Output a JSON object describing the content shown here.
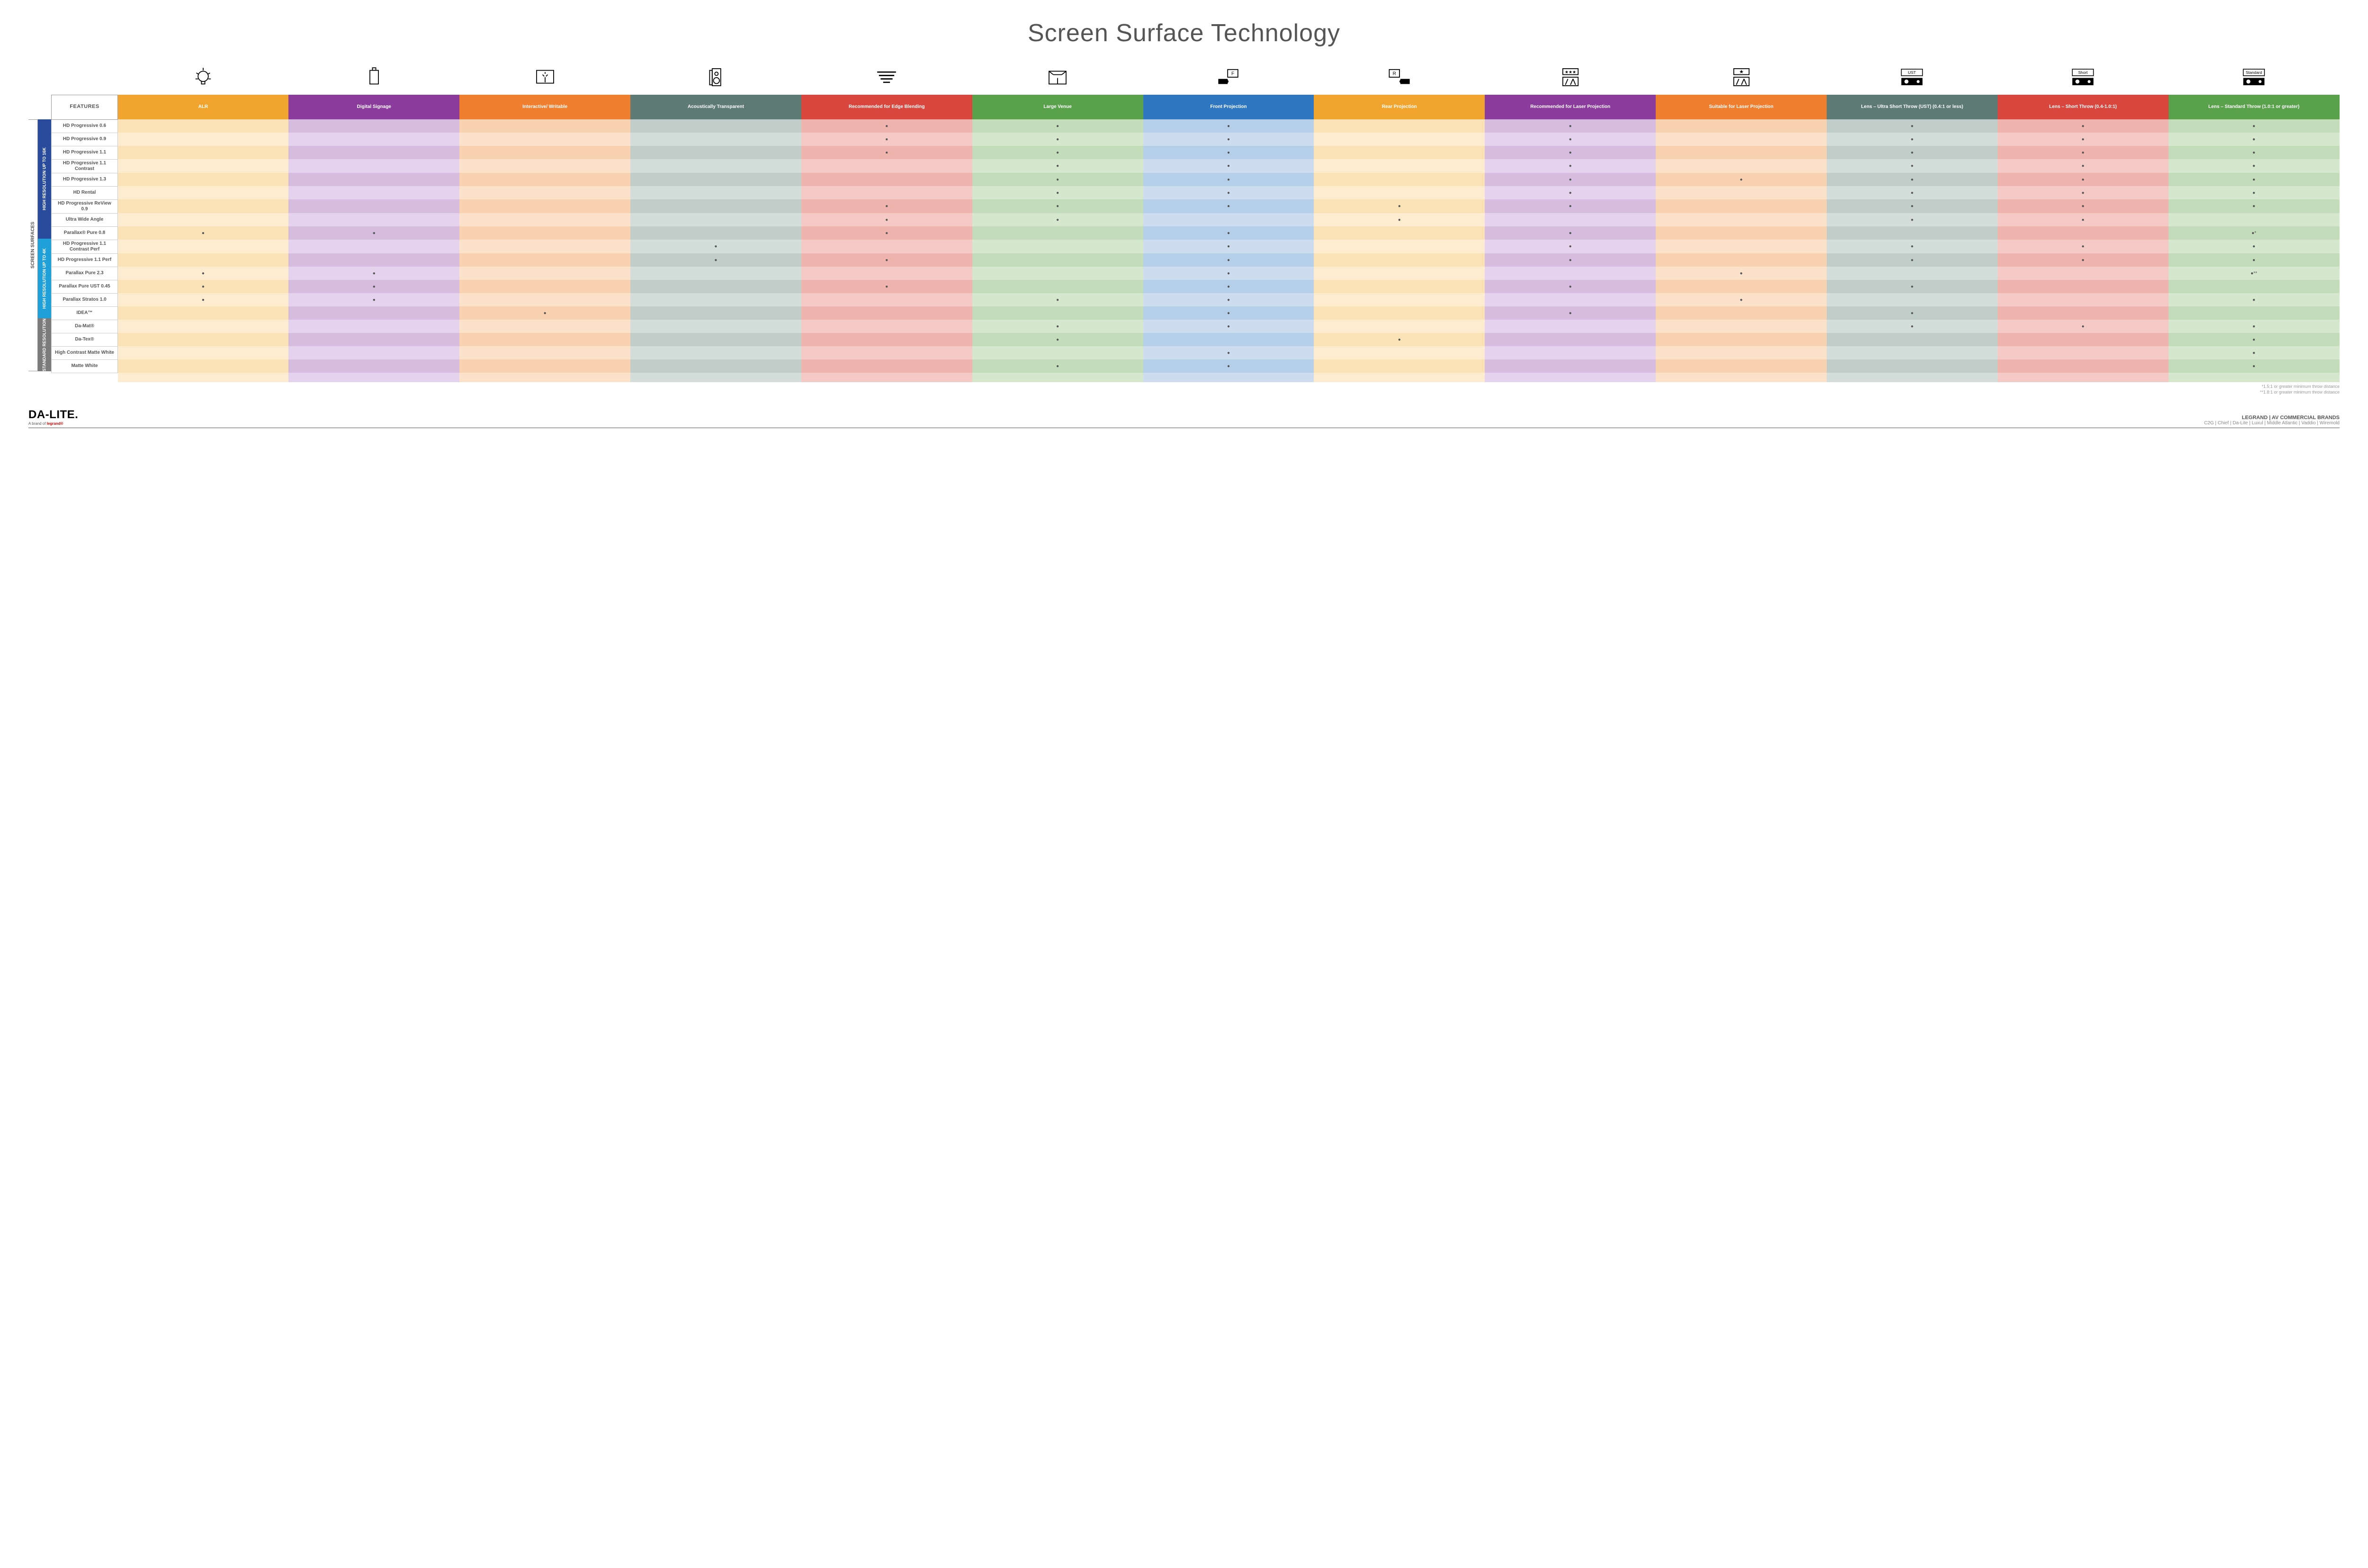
{
  "title": "Screen Surface Technology",
  "outer_label": "SCREEN SURFACES",
  "groups": [
    {
      "label": "HIGH RESOLUTION UP TO 16K",
      "color": "#2a4b9b",
      "span": 9
    },
    {
      "label": "HIGH RESOLUTION UP TO 4K",
      "color": "#1fa0d8",
      "span": 6
    },
    {
      "label": "STANDARD RESOLUTION",
      "color": "#7b7b7b",
      "span": 4
    }
  ],
  "features_header": "FEATURES",
  "columns": [
    {
      "label": "ALR",
      "color": "#f2a52e",
      "light": "#fbe2b6",
      "lighter": "#fdeccf",
      "icon": "bulb"
    },
    {
      "label": "Digital Signage",
      "color": "#8a3b9c",
      "light": "#d6bde0",
      "lighter": "#e5d2ec",
      "icon": "signage"
    },
    {
      "label": "Interactive/ Writable",
      "color": "#f07e2f",
      "light": "#f9d2b2",
      "lighter": "#fce2cb",
      "icon": "touch"
    },
    {
      "label": "Acoustically Transparent",
      "color": "#5d7a74",
      "light": "#c0cdc9",
      "lighter": "#d3ddda",
      "icon": "speaker"
    },
    {
      "label": "Recommended for Edge Blending",
      "color": "#d9463d",
      "light": "#f0b4af",
      "lighter": "#f5cac6",
      "icon": "blend"
    },
    {
      "label": "Large Venue",
      "color": "#5aa14c",
      "light": "#c3dcb9",
      "lighter": "#d5e7cd",
      "icon": "venue"
    },
    {
      "label": "Front Projection",
      "color": "#2f77c0",
      "light": "#b6cfe8",
      "lighter": "#cdddef",
      "icon": "front"
    },
    {
      "label": "Rear Projection",
      "color": "#f2a52e",
      "light": "#fbe2b6",
      "lighter": "#fdeccf",
      "icon": "rear"
    },
    {
      "label": "Recommended for Laser Projection",
      "color": "#8a3b9c",
      "light": "#d6bde0",
      "lighter": "#e5d2ec",
      "icon": "laser-rec"
    },
    {
      "label": "Suitable for Laser Projection",
      "color": "#f07e2f",
      "light": "#f9d2b2",
      "lighter": "#fce2cb",
      "icon": "laser-suit"
    },
    {
      "label": "Lens – Ultra Short Throw (UST) (0.4:1 or less)",
      "color": "#5d7a74",
      "light": "#c0cdc9",
      "lighter": "#d3ddda",
      "icon": "ust"
    },
    {
      "label": "Lens – Short Throw (0.4-1.0:1)",
      "color": "#d9463d",
      "light": "#f0b4af",
      "lighter": "#f5cac6",
      "icon": "short"
    },
    {
      "label": "Lens – Standard Throw (1.0:1 or greater)",
      "color": "#5aa14c",
      "light": "#c3dcb9",
      "lighter": "#d5e7cd",
      "icon": "standard"
    }
  ],
  "rows": [
    {
      "label": "HD Progressive 0.6",
      "dots": [
        0,
        0,
        0,
        0,
        1,
        1,
        1,
        0,
        1,
        0,
        1,
        1,
        1
      ]
    },
    {
      "label": "HD Progressive 0.9",
      "dots": [
        0,
        0,
        0,
        0,
        1,
        1,
        1,
        0,
        1,
        0,
        1,
        1,
        1
      ]
    },
    {
      "label": "HD Progressive 1.1",
      "dots": [
        0,
        0,
        0,
        0,
        1,
        1,
        1,
        0,
        1,
        0,
        1,
        1,
        1
      ]
    },
    {
      "label": "HD Progressive 1.1 Contrast",
      "dots": [
        0,
        0,
        0,
        0,
        0,
        1,
        1,
        0,
        1,
        0,
        1,
        1,
        1
      ]
    },
    {
      "label": "HD Progressive 1.3",
      "dots": [
        0,
        0,
        0,
        0,
        0,
        1,
        1,
        0,
        1,
        1,
        1,
        1,
        1
      ]
    },
    {
      "label": "HD Rental",
      "dots": [
        0,
        0,
        0,
        0,
        0,
        1,
        1,
        0,
        1,
        0,
        1,
        1,
        1
      ]
    },
    {
      "label": "HD Progressive ReView 0.9",
      "dots": [
        0,
        0,
        0,
        0,
        1,
        1,
        1,
        1,
        1,
        0,
        1,
        1,
        1
      ]
    },
    {
      "label": "Ultra Wide Angle",
      "dots": [
        0,
        0,
        0,
        0,
        1,
        1,
        0,
        1,
        0,
        0,
        1,
        1,
        0
      ]
    },
    {
      "label": "Parallax® Pure 0.8",
      "dots": [
        1,
        1,
        0,
        0,
        1,
        0,
        1,
        0,
        1,
        0,
        0,
        0,
        "●*"
      ]
    },
    {
      "label": "HD Progressive 1.1 Contrast Perf",
      "dots": [
        0,
        0,
        0,
        1,
        0,
        0,
        1,
        0,
        1,
        0,
        1,
        1,
        1
      ]
    },
    {
      "label": "HD Progressive 1.1 Perf",
      "dots": [
        0,
        0,
        0,
        1,
        1,
        0,
        1,
        0,
        1,
        0,
        1,
        1,
        1
      ]
    },
    {
      "label": "Parallax Pure 2.3",
      "dots": [
        1,
        1,
        0,
        0,
        0,
        0,
        1,
        0,
        0,
        1,
        0,
        0,
        "●**"
      ]
    },
    {
      "label": "Parallax Pure UST 0.45",
      "dots": [
        1,
        1,
        0,
        0,
        1,
        0,
        1,
        0,
        1,
        0,
        1,
        0,
        0
      ]
    },
    {
      "label": "Parallax Stratos 1.0",
      "dots": [
        1,
        1,
        0,
        0,
        0,
        1,
        1,
        0,
        0,
        1,
        0,
        0,
        1
      ]
    },
    {
      "label": "IDEA™",
      "dots": [
        0,
        0,
        1,
        0,
        0,
        0,
        1,
        0,
        1,
        0,
        1,
        0,
        0
      ]
    },
    {
      "label": "Da-Mat®",
      "dots": [
        0,
        0,
        0,
        0,
        0,
        1,
        1,
        0,
        0,
        0,
        1,
        1,
        1
      ]
    },
    {
      "label": "Da-Tex®",
      "dots": [
        0,
        0,
        0,
        0,
        0,
        1,
        0,
        1,
        0,
        0,
        0,
        0,
        1
      ]
    },
    {
      "label": "High Contrast Matte White",
      "dots": [
        0,
        0,
        0,
        0,
        0,
        0,
        1,
        0,
        0,
        0,
        0,
        0,
        1
      ]
    },
    {
      "label": "Matte White",
      "dots": [
        0,
        0,
        0,
        0,
        0,
        1,
        1,
        0,
        0,
        0,
        0,
        0,
        1
      ]
    }
  ],
  "notes": [
    "*1.5:1 or greater minimum throw distance",
    "**1.8:1 or greater minimum throw distance"
  ],
  "footer": {
    "logo_main": "DA-LITE.",
    "logo_sub_prefix": "A brand of ",
    "logo_sub_brand": "legrand®",
    "brands_title": "LEGRAND | AV COMMERCIAL BRANDS",
    "brands_list": "C2G  |  Chief  |  Da-Lite  |  Luxul  |  Middle Atlantic  |  Vaddio  |  Wiremold"
  }
}
